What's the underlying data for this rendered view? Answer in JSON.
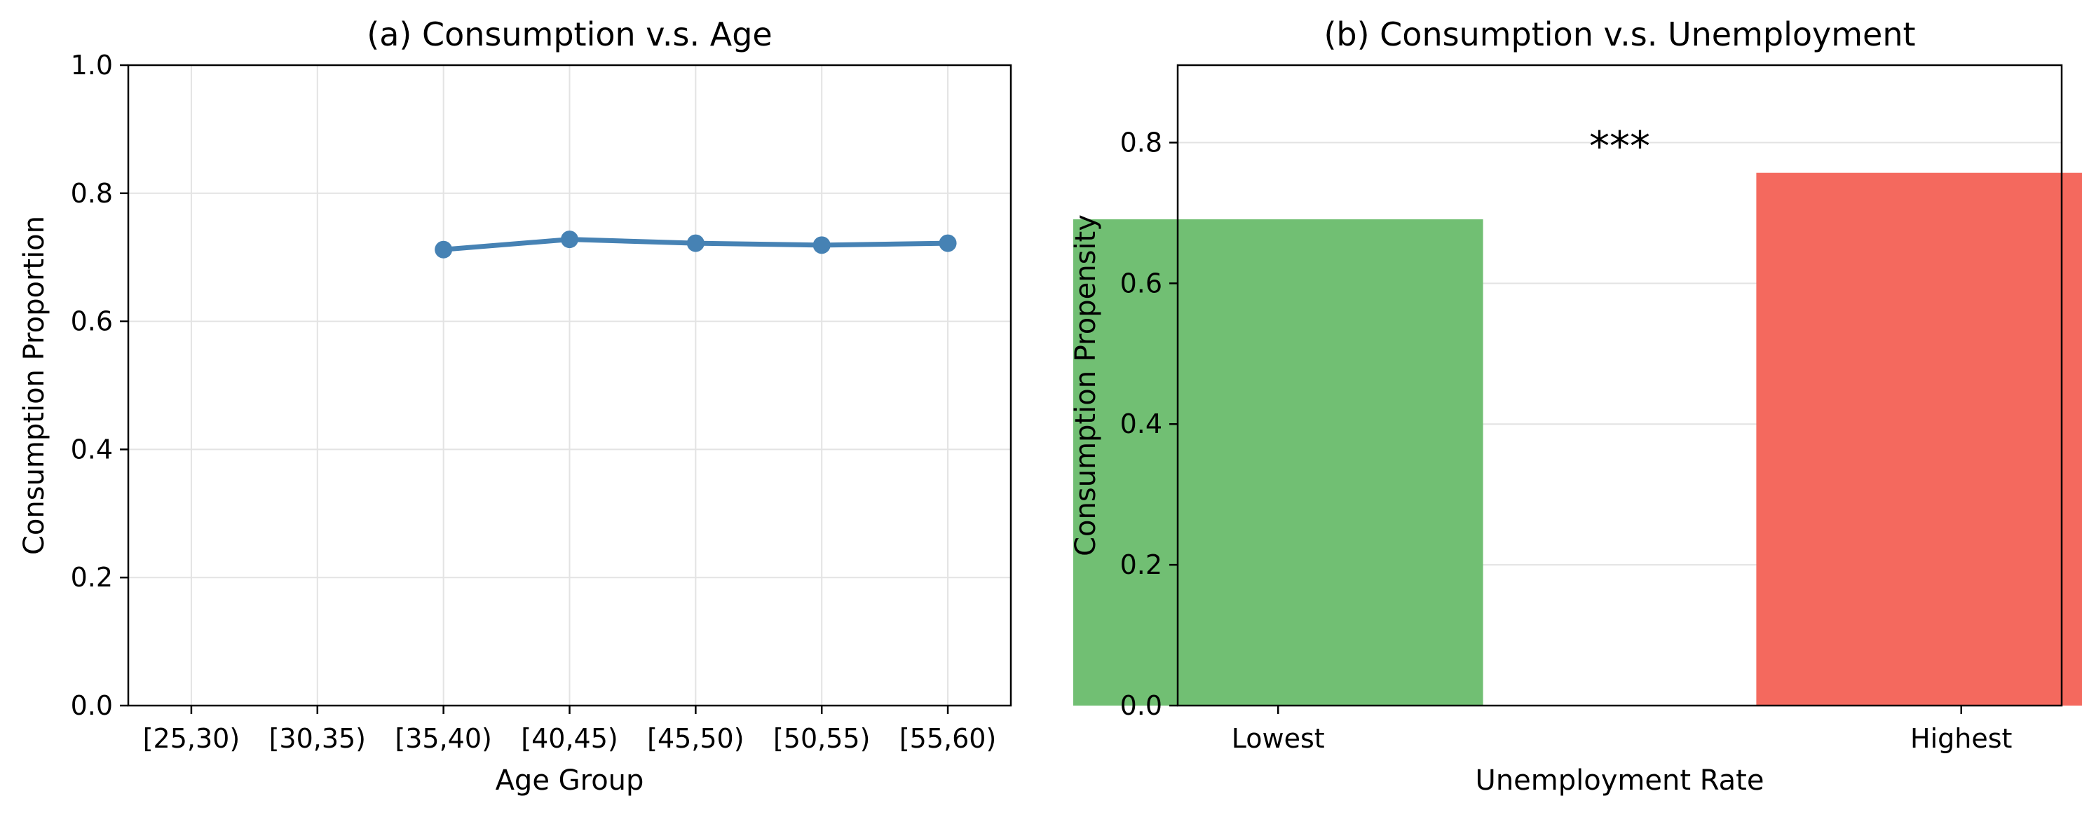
{
  "colors": {
    "line": "#4682b4",
    "bar_lowest": "#71bf73",
    "bar_highest": "#f4695e",
    "grid": "#e3e3e3",
    "axes": "#000000",
    "background": "#ffffff"
  },
  "chart_data": [
    {
      "type": "line",
      "title": "(a) Consumption v.s. Age",
      "xlabel": "Age Group",
      "ylabel": "Consumption Proportion",
      "categories": [
        "[25,30)",
        "[30,35)",
        "[35,40)",
        "[40,45)",
        "[45,50)",
        "[50,55)",
        "[55,60)"
      ],
      "series": [
        {
          "values": [
            null,
            null,
            0.712,
            0.728,
            0.722,
            0.719,
            0.722
          ]
        }
      ],
      "ylim": [
        0,
        1.0
      ],
      "yticks": [
        0.0,
        0.2,
        0.4,
        0.6,
        0.8,
        1.0
      ],
      "ytick_labels": [
        "0.0",
        "0.2",
        "0.4",
        "0.6",
        "0.8",
        "1.0"
      ],
      "grid": true,
      "markers": "circle"
    },
    {
      "type": "bar",
      "title": "(b) Consumption v.s. Unemployment",
      "xlabel": "Unemployment Rate",
      "ylabel": "Consumption Propensity",
      "categories": [
        "Lowest",
        "Highest"
      ],
      "values": [
        0.691,
        0.757
      ],
      "ylim": [
        0,
        0.91
      ],
      "yticks": [
        0.0,
        0.2,
        0.4,
        0.6,
        0.8
      ],
      "ytick_labels": [
        "0.0",
        "0.2",
        "0.4",
        "0.6",
        "0.8"
      ],
      "grid": true,
      "annotation": "***"
    }
  ]
}
